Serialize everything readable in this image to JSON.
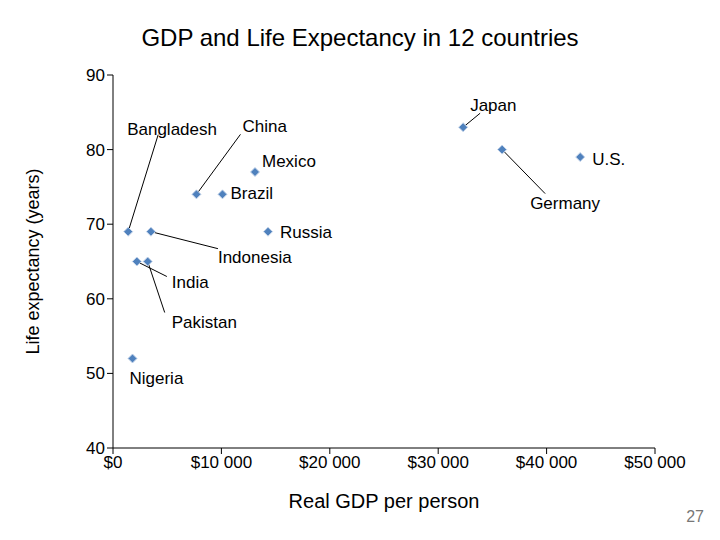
{
  "chart_data": {
    "type": "scatter",
    "title": "GDP and Life Expectancy in 12 countries",
    "x_label": "Real GDP per person",
    "y_label": "Life expectancy (years)",
    "labels": [
      "Bangladesh",
      "China",
      "Brazil",
      "Mexico",
      "Russia",
      "Indonesia",
      "India",
      "Pakistan",
      "Nigeria",
      "Japan",
      "Germany",
      "U.S."
    ],
    "x": [
      1400,
      7700,
      10100,
      13100,
      14300,
      3500,
      2200,
      3200,
      1800,
      32300,
      35900,
      43100
    ],
    "values": [
      69,
      74,
      74,
      77,
      69,
      69,
      65,
      65,
      52,
      83,
      80,
      79
    ],
    "color": "#4f81bd",
    "marker": "diamond",
    "xlim": [
      0,
      50000
    ],
    "xticks": [
      {
        "value": 0,
        "label": "$0"
      },
      {
        "value": 10000,
        "label": "$10 000"
      },
      {
        "value": 20000,
        "label": "$20 000"
      },
      {
        "value": 30000,
        "label": "$30 000"
      },
      {
        "value": 40000,
        "label": "$40 000"
      },
      {
        "value": 50000,
        "label": "$50 000"
      }
    ],
    "ylim": [
      40,
      90
    ],
    "yticks": [
      40,
      50,
      60,
      70,
      80,
      90
    ],
    "grid": false
  },
  "page_number": "27"
}
